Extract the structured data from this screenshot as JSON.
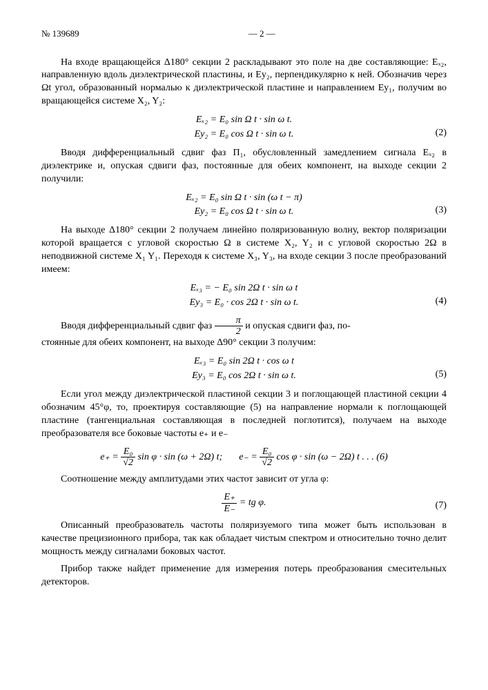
{
  "header": {
    "doc_number": "№ 139689",
    "page_marker": "— 2 —"
  },
  "paragraphs": {
    "p1": "На входе вращающейся Δ180° секции 2 раскладывают это поле на две составляющие: Eₓ₂, направленную вдоль диэлектрической пластины, и Ey₂, перпендикулярно к ней. Обозначив через Ωt угол, образованный нормалью к диэлектрической пластине и направлением Ey₁, получим во вращающейся системе X₂, Y₂:",
    "p2": "Вводя дифференциальный сдвиг фаз П₁, обусловленный замедлением сигнала Eₓ₂ в диэлектрике и, опуская сдвиги фаз, постоянные для обеих компонент, на выходе секции 2 получили:",
    "p3": "На выходе Δ180° секции 2 получаем линейно поляризованную волну, вектор поляризации которой вращается с угловой скоростью Ω в системе X₂, Y₂ и с угловой скоростью 2Ω в неподвижной системе X₁ Y₁. Переходя к системе X₃, Y₃, на входе секции 3 после преобразований имеем:",
    "p4a": "Вводя дифференциальный сдвиг фаз ",
    "p4b": " и опуская сдвиги фаз, по-",
    "p4c": "стоянные для обеих компонент, на выходе Δ90° секции 3 получим:",
    "p5": "Если угол между диэлектрической пластиной секции 3 и поглощающей пластиной секции 4 обозначим 45°φ, то, проектируя составляющие (5) на направление нормали к поглощающей пластине (тангенциальная составляющая в последней поглотится), получаем на выходе преобразователя все боковые частоты e₊ и e₋",
    "p6": "Соотношение между амплитудами этих частот зависит от угла φ:",
    "p7": "Описанный преобразователь частоты поляризуемого типа может быть использован в качестве прецизионного прибора, так как обладает чистым спектром и относительно точно делит мощность между сигналами боковых частот.",
    "p8": "Прибор также найдет применение для измерения потерь преобразования смесительных детекторов."
  },
  "equations": {
    "eq2a": "Eₓ₂ = E₀ sin Ω t · sin ω t.",
    "eq2b": "Ey₂ = E₀ cos Ω t · sin ω t.",
    "eq2num": "(2)",
    "eq3a": "Eₓ₂ = E₀ sin Ω t · sin (ω t − π)",
    "eq3b": "Ey₂ = E₀ cos Ω t · sin ω t.",
    "eq3num": "(3)",
    "eq4a": "Eₓ₃ = − E₀ sin 2Ω t · sin ω t",
    "eq4b": "Ey₃ = E₀ · cos 2Ω t · sin ω t.",
    "eq4num": "(4)",
    "eq5a": "Eₓ₃ = E₀ sin 2Ω t · cos ω t",
    "eq5b": "Ey₃ = E₀ cos 2Ω t · sin ω t.",
    "eq5num": "(5)",
    "eq6a_lhs": "e₊ = ",
    "eq6a_num": "E₀",
    "eq6a_den": "√2",
    "eq6a_rhs": " sin φ · sin (ω + 2Ω) t;",
    "eq6b_lhs": "e₋ = ",
    "eq6b_num": "E₀",
    "eq6b_den": "√2",
    "eq6b_rhs": " cos φ · sin (ω − 2Ω) t . . . (6)",
    "eq7_num": "E₊",
    "eq7_den": "E₋",
    "eq7_rhs": " = tg φ.",
    "eq7num": "(7)",
    "frac_pi2_num": "π",
    "frac_pi2_den": "2"
  }
}
